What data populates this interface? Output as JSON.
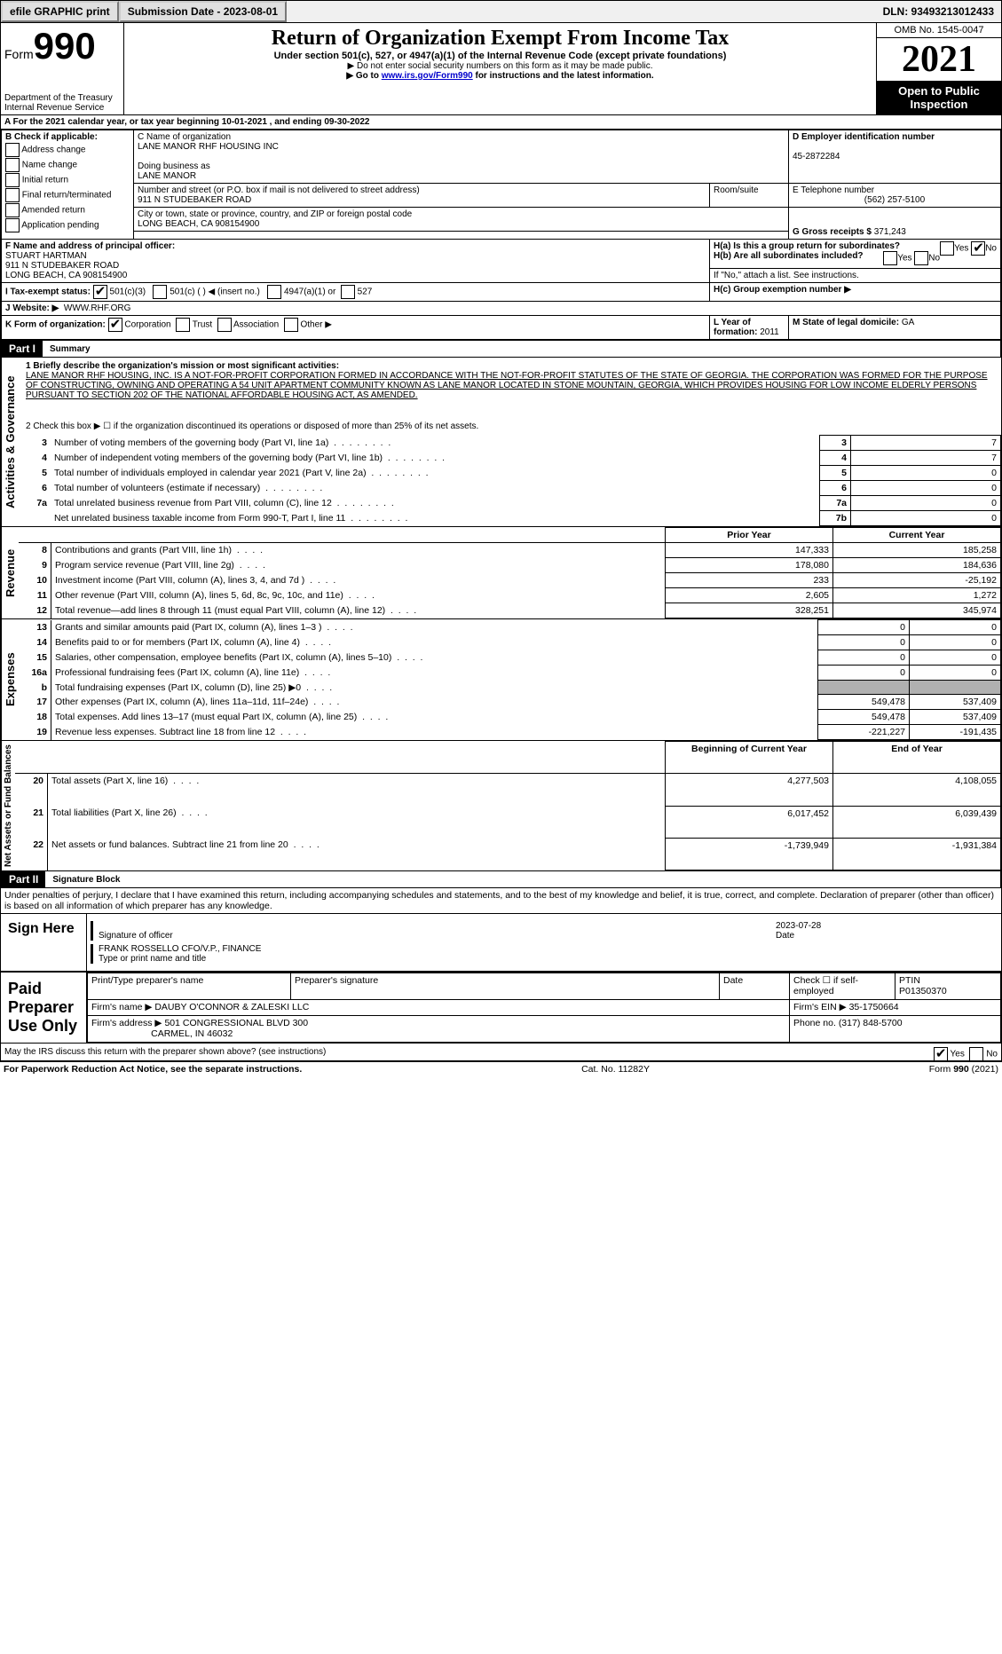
{
  "topbar": {
    "efile": "efile GRAPHIC print",
    "submission": "Submission Date - 2023-08-01",
    "dln_label": "DLN: 93493213012433"
  },
  "header": {
    "form_word": "Form",
    "form_num": "990",
    "dept": "Department of the Treasury",
    "irs": "Internal Revenue Service",
    "title": "Return of Organization Exempt From Income Tax",
    "subtitle": "Under section 501(c), 527, or 4947(a)(1) of the Internal Revenue Code (except private foundations)",
    "note1": "▶ Do not enter social security numbers on this form as it may be made public.",
    "note2_pre": "▶ Go to ",
    "note2_link": "www.irs.gov/Form990",
    "note2_post": " for instructions and the latest information.",
    "omb": "OMB No. 1545-0047",
    "year": "2021",
    "open": "Open to Public Inspection"
  },
  "period": "A For the 2021 calendar year, or tax year beginning 10-01-2021   , and ending 09-30-2022",
  "boxB": {
    "label": "B Check if applicable:",
    "items": [
      "Address change",
      "Name change",
      "Initial return",
      "Final return/terminated",
      "Amended return",
      "Application pending"
    ]
  },
  "boxC": {
    "name_lbl": "C Name of organization",
    "name": "LANE MANOR RHF HOUSING INC",
    "dba_lbl": "Doing business as",
    "dba": "LANE MANOR",
    "street_lbl": "Number and street (or P.O. box if mail is not delivered to street address)",
    "street": "911 N STUDEBAKER ROAD",
    "room_lbl": "Room/suite",
    "city_lbl": "City or town, state or province, country, and ZIP or foreign postal code",
    "city": "LONG BEACH, CA  908154900"
  },
  "boxD": {
    "lbl": "D Employer identification number",
    "val": "45-2872284"
  },
  "boxE": {
    "lbl": "E Telephone number",
    "val": "(562) 257-5100"
  },
  "boxG": {
    "lbl": "G Gross receipts $",
    "val": "371,243"
  },
  "boxF": {
    "lbl": "F Name and address of principal officer:",
    "name": "STUART HARTMAN",
    "addr1": "911 N STUDEBAKER ROAD",
    "addr2": "LONG BEACH, CA  908154900"
  },
  "boxH": {
    "a": "H(a)  Is this a group return for subordinates?",
    "b": "H(b)  Are all subordinates included?",
    "b2": "If \"No,\" attach a list. See instructions.",
    "c": "H(c)  Group exemption number ▶",
    "yes": "Yes",
    "no": "No"
  },
  "boxI": {
    "lbl": "I  Tax-exempt status:",
    "c1": "501(c)(3)",
    "c2": "501(c) (  ) ◀ (insert no.)",
    "c3": "4947(a)(1) or",
    "c4": "527"
  },
  "boxJ": {
    "lbl": "J  Website: ▶",
    "val": "WWW.RHF.ORG"
  },
  "boxK": {
    "lbl": "K Form of organization:",
    "c1": "Corporation",
    "c2": "Trust",
    "c3": "Association",
    "c4": "Other ▶"
  },
  "boxL": {
    "lbl": "L Year of formation:",
    "val": "2011"
  },
  "boxM": {
    "lbl": "M State of legal domicile:",
    "val": "GA"
  },
  "part1": {
    "hdr": "Part I",
    "title": "Summary",
    "l1_lbl": "1  Briefly describe the organization's mission or most significant activities:",
    "l1_txt": "LANE MANOR RHF HOUSING, INC. IS A NOT-FOR-PROFIT CORPORATION FORMED IN ACCORDANCE WITH THE NOT-FOR-PROFIT STATUTES OF THE STATE OF GEORGIA. THE CORPORATION WAS FORMED FOR THE PURPOSE OF CONSTRUCTING, OWNING AND OPERATING A 54 UNIT APARTMENT COMMUNITY KNOWN AS LANE MANOR LOCATED IN STONE MOUNTAIN, GEORGIA, WHICH PROVIDES HOUSING FOR LOW INCOME ELDERLY PERSONS PURSUANT TO SECTION 202 OF THE NATIONAL AFFORDABLE HOUSING ACT, AS AMENDED.",
    "l2": "2    Check this box ▶ ☐  if the organization discontinued its operations or disposed of more than 25% of its net assets.",
    "rows_ag": [
      {
        "n": "3",
        "t": "Number of voting members of the governing body (Part VI, line 1a)",
        "k": "3",
        "v": "7"
      },
      {
        "n": "4",
        "t": "Number of independent voting members of the governing body (Part VI, line 1b)",
        "k": "4",
        "v": "7"
      },
      {
        "n": "5",
        "t": "Total number of individuals employed in calendar year 2021 (Part V, line 2a)",
        "k": "5",
        "v": "0"
      },
      {
        "n": "6",
        "t": "Total number of volunteers (estimate if necessary)",
        "k": "6",
        "v": "0"
      },
      {
        "n": "7a",
        "t": "Total unrelated business revenue from Part VIII, column (C), line 12",
        "k": "7a",
        "v": "0"
      },
      {
        "n": "",
        "t": "Net unrelated business taxable income from Form 990-T, Part I, line 11",
        "k": "7b",
        "v": "0"
      }
    ],
    "py": "Prior Year",
    "cy": "Current Year",
    "rev": [
      {
        "n": "8",
        "t": "Contributions and grants (Part VIII, line 1h)",
        "p": "147,333",
        "c": "185,258"
      },
      {
        "n": "9",
        "t": "Program service revenue (Part VIII, line 2g)",
        "p": "178,080",
        "c": "184,636"
      },
      {
        "n": "10",
        "t": "Investment income (Part VIII, column (A), lines 3, 4, and 7d )",
        "p": "233",
        "c": "-25,192"
      },
      {
        "n": "11",
        "t": "Other revenue (Part VIII, column (A), lines 5, 6d, 8c, 9c, 10c, and 11e)",
        "p": "2,605",
        "c": "1,272"
      },
      {
        "n": "12",
        "t": "Total revenue—add lines 8 through 11 (must equal Part VIII, column (A), line 12)",
        "p": "328,251",
        "c": "345,974"
      }
    ],
    "exp": [
      {
        "n": "13",
        "t": "Grants and similar amounts paid (Part IX, column (A), lines 1–3 )",
        "p": "0",
        "c": "0"
      },
      {
        "n": "14",
        "t": "Benefits paid to or for members (Part IX, column (A), line 4)",
        "p": "0",
        "c": "0"
      },
      {
        "n": "15",
        "t": "Salaries, other compensation, employee benefits (Part IX, column (A), lines 5–10)",
        "p": "0",
        "c": "0"
      },
      {
        "n": "16a",
        "t": "Professional fundraising fees (Part IX, column (A), line 11e)",
        "p": "0",
        "c": "0"
      },
      {
        "n": "b",
        "t": "Total fundraising expenses (Part IX, column (D), line 25) ▶0",
        "p": "",
        "c": "",
        "gray": true
      },
      {
        "n": "17",
        "t": "Other expenses (Part IX, column (A), lines 11a–11d, 11f–24e)",
        "p": "549,478",
        "c": "537,409"
      },
      {
        "n": "18",
        "t": "Total expenses. Add lines 13–17 (must equal Part IX, column (A), line 25)",
        "p": "549,478",
        "c": "537,409"
      },
      {
        "n": "19",
        "t": "Revenue less expenses. Subtract line 18 from line 12",
        "p": "-221,227",
        "c": "-191,435"
      }
    ],
    "by": "Beginning of Current Year",
    "ey": "End of Year",
    "net": [
      {
        "n": "20",
        "t": "Total assets (Part X, line 16)",
        "p": "4,277,503",
        "c": "4,108,055"
      },
      {
        "n": "21",
        "t": "Total liabilities (Part X, line 26)",
        "p": "6,017,452",
        "c": "6,039,439"
      },
      {
        "n": "22",
        "t": "Net assets or fund balances. Subtract line 21 from line 20",
        "p": "-1,739,949",
        "c": "-1,931,384"
      }
    ],
    "side_ag": "Activities & Governance",
    "side_rev": "Revenue",
    "side_exp": "Expenses",
    "side_net": "Net Assets or Fund Balances"
  },
  "part2": {
    "hdr": "Part II",
    "title": "Signature Block",
    "decl": "Under penalties of perjury, I declare that I have examined this return, including accompanying schedules and statements, and to the best of my knowledge and belief, it is true, correct, and complete. Declaration of preparer (other than officer) is based on all information of which preparer has any knowledge.",
    "sign_here": "Sign Here",
    "sig_lbl": "Signature of officer",
    "date": "2023-07-28",
    "date_lbl": "Date",
    "name": "FRANK ROSSELLO  CFO/V.P., FINANCE",
    "name_lbl": "Type or print name and title",
    "paid": "Paid Preparer Use Only",
    "pp_name": "Print/Type preparer's name",
    "pp_sig": "Preparer's signature",
    "pp_date": "Date",
    "pp_self": "Check ☐ if self-employed",
    "ptin_lbl": "PTIN",
    "ptin": "P01350370",
    "firm_lbl": "Firm's name    ▶",
    "firm": "DAUBY O'CONNOR & ZALESKI LLC",
    "ein_lbl": "Firm's EIN ▶",
    "ein": "35-1750664",
    "addr_lbl": "Firm's address ▶",
    "addr1": "501 CONGRESSIONAL BLVD 300",
    "addr2": "CARMEL, IN  46032",
    "phone_lbl": "Phone no.",
    "phone": "(317) 848-5700",
    "discuss": "May the IRS discuss this return with the preparer shown above? (see instructions)",
    "yes": "Yes",
    "no": "No"
  },
  "footer": {
    "pra": "For Paperwork Reduction Act Notice, see the separate instructions.",
    "cat": "Cat. No. 11282Y",
    "form": "Form 990 (2021)"
  }
}
